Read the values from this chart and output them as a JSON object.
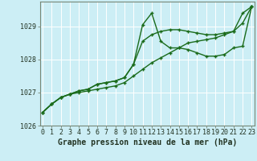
{
  "title": "Graphe pression niveau de la mer (hPa)",
  "bg_color": "#cceef5",
  "grid_color": "#ffffff",
  "line_color": "#1a6b1a",
  "x_values": [
    0,
    1,
    2,
    3,
    4,
    5,
    6,
    7,
    8,
    9,
    10,
    11,
    12,
    13,
    14,
    15,
    16,
    17,
    18,
    19,
    20,
    21,
    22,
    23
  ],
  "series1": [
    1026.4,
    1026.65,
    1026.85,
    1026.95,
    1027.05,
    1027.1,
    1027.25,
    1027.3,
    1027.35,
    1027.45,
    1027.85,
    1029.05,
    1029.4,
    1028.55,
    1028.35,
    1028.35,
    1028.3,
    1028.2,
    1028.1,
    1028.1,
    1028.15,
    1028.35,
    1028.4,
    1029.6
  ],
  "series2": [
    1026.4,
    1026.65,
    1026.85,
    1026.95,
    1027.05,
    1027.1,
    1027.25,
    1027.3,
    1027.35,
    1027.45,
    1027.85,
    1028.55,
    1028.75,
    1028.85,
    1028.9,
    1028.9,
    1028.85,
    1028.8,
    1028.75,
    1028.75,
    1028.8,
    1028.85,
    1029.4,
    1029.6
  ],
  "series3": [
    1026.4,
    1026.65,
    1026.85,
    1026.95,
    1027.0,
    1027.05,
    1027.1,
    1027.15,
    1027.2,
    1027.3,
    1027.5,
    1027.7,
    1027.9,
    1028.05,
    1028.2,
    1028.35,
    1028.5,
    1028.55,
    1028.6,
    1028.65,
    1028.75,
    1028.85,
    1029.1,
    1029.6
  ],
  "ylim": [
    1026.0,
    1029.75
  ],
  "yticks": [
    1026,
    1027,
    1028,
    1029
  ],
  "xticks": [
    0,
    1,
    2,
    3,
    4,
    5,
    6,
    7,
    8,
    9,
    10,
    11,
    12,
    13,
    14,
    15,
    16,
    17,
    18,
    19,
    20,
    21,
    22,
    23
  ],
  "marker": "+",
  "linewidth": 1.0,
  "marker_size": 3.5,
  "title_fontsize": 7.0,
  "tick_fontsize": 6.0,
  "axis_color": "#556655"
}
